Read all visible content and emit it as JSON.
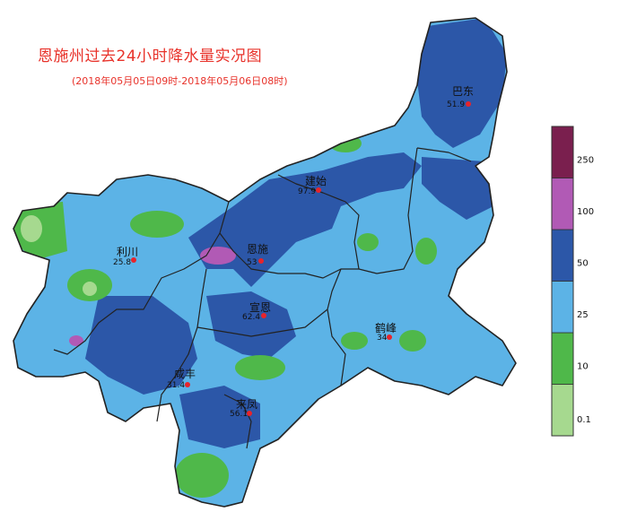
{
  "title": "恩施州过去24小时降水量实况图",
  "subtitle": "(2018年05月05日09时-2018年05月06日08时)",
  "legend": {
    "levels": [
      {
        "label": "0.1",
        "color": "#a6d98f"
      },
      {
        "label": "10",
        "color": "#4fb84a"
      },
      {
        "label": "25",
        "color": "#5cb3e6"
      },
      {
        "label": "50",
        "color": "#2c57a8"
      },
      {
        "label": "100",
        "color": "#b15ab5"
      },
      {
        "label": "250",
        "color": "#7a1f4e"
      }
    ]
  },
  "stations": [
    {
      "name": "巴东",
      "value": "51.9"
    },
    {
      "name": "建始",
      "value": "97.9"
    },
    {
      "name": "利川",
      "value": "25.8"
    },
    {
      "name": "恩施",
      "value": "53"
    },
    {
      "name": "宣恩",
      "value": "62.4"
    },
    {
      "name": "鹤峰",
      "value": "34"
    },
    {
      "name": "咸丰",
      "value": "31.4"
    },
    {
      "name": "来凤",
      "value": "56.1"
    }
  ]
}
